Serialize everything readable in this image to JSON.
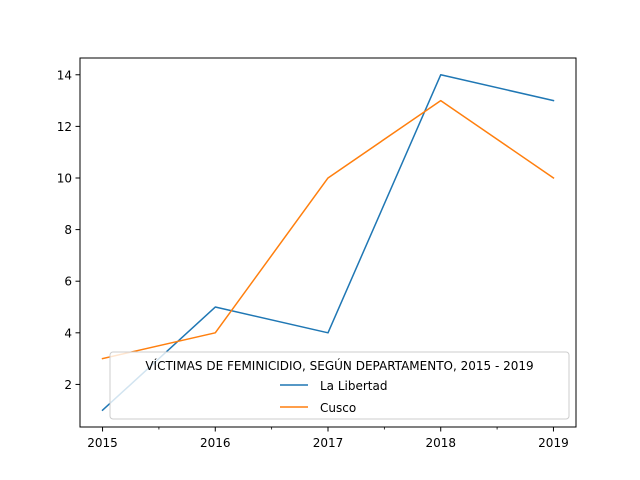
{
  "chart_data": {
    "type": "line",
    "title": "",
    "xlabel": "",
    "ylabel": "",
    "x": [
      2015,
      2016,
      2017,
      2018,
      2019
    ],
    "x_tick_labels": [
      "2015",
      "2016",
      "2017",
      "2018",
      "2019"
    ],
    "series": [
      {
        "name": "La Libertad",
        "color": "#1f77b4",
        "values": [
          1,
          5,
          4,
          14,
          13
        ]
      },
      {
        "name": "Cusco",
        "color": "#ff7f0e",
        "values": [
          3,
          4,
          10,
          13,
          10
        ]
      }
    ],
    "xlim": [
      2014.8,
      2019.2
    ],
    "ylim": [
      0.35,
      14.65
    ],
    "y_ticks": [
      2,
      4,
      6,
      8,
      10,
      12,
      14
    ],
    "minor_x_ticks": [
      2015.5,
      2016.5,
      2017.5,
      2018.5
    ],
    "grid": false,
    "legend": {
      "title": "VÍCTIMAS DE FEMINICIDIO, SEGÚN DEPARTAMENTO, 2015 - 2019",
      "placement": "bottom-right"
    }
  }
}
